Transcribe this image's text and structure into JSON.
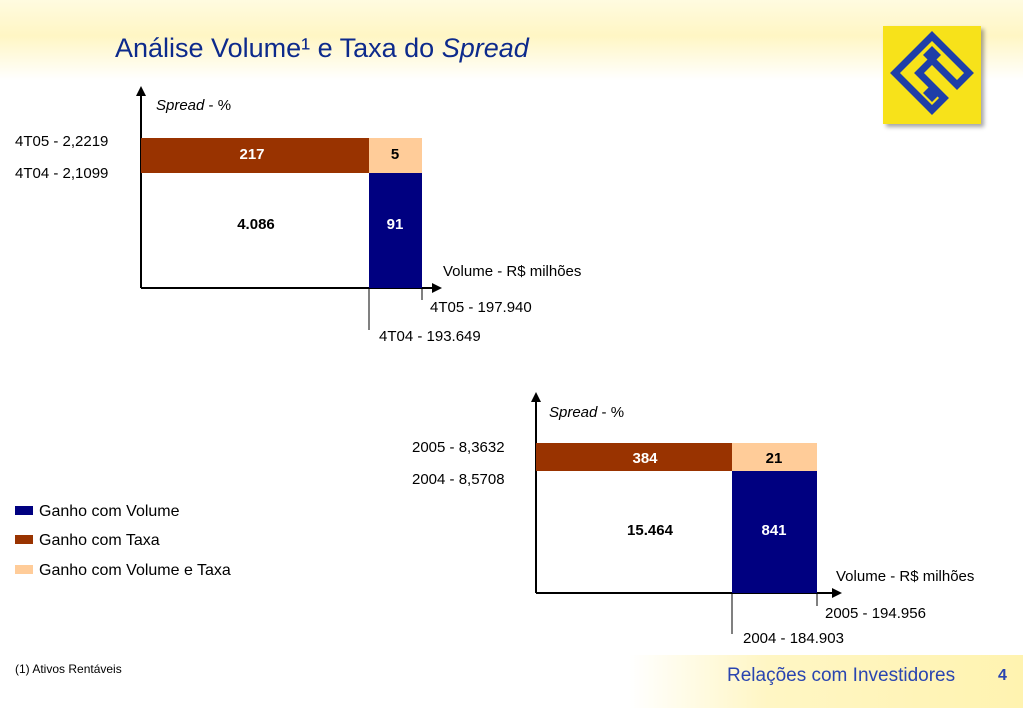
{
  "header": {
    "title_main": "Análise Volume¹ e Taxa do ",
    "title_italic": "Spread"
  },
  "colors": {
    "volume": "#000080",
    "taxa": "#993300",
    "volume_taxa": "#ffcc99",
    "title": "#0d2a8c",
    "logo_bg": "#f7e21a",
    "logo_mark": "#1e3ea8"
  },
  "legend": {
    "items": [
      {
        "label": "Ganho com Volume",
        "color": "#000080"
      },
      {
        "label": "Ganho com Taxa",
        "color": "#993300"
      },
      {
        "label": "Ganho com Volume e Taxa",
        "color": "#ffcc99"
      }
    ]
  },
  "chart_data": [
    {
      "type": "bar",
      "y_label_italic": "Spread",
      "y_label_rest": " - %",
      "x_label": "Volume - R$ milhões",
      "spread_labels": {
        "high": "4T05 - 2,2219",
        "low": "4T04 - 2,1099"
      },
      "volume_labels": {
        "high": "4T05 - 197.940",
        "low": "4T04 - 193.649"
      },
      "spread": {
        "prior": 2.1099,
        "current": 2.2219
      },
      "volume": {
        "prior": 193649,
        "current": 197940
      },
      "values": {
        "base": "4.086",
        "taxa": "217",
        "volume": "91",
        "volume_taxa": "5"
      }
    },
    {
      "type": "bar",
      "y_label_italic": "Spread",
      "y_label_rest": " - %",
      "x_label": "Volume - R$ milhões",
      "spread_labels": {
        "high": "2005 - 8,3632",
        "low": "2004 - 8,5708"
      },
      "volume_labels": {
        "high": "2005 - 194.956",
        "low": "2004 - 184.903"
      },
      "spread": {
        "prior": 8.5708,
        "current": 8.3632
      },
      "volume": {
        "prior": 184903,
        "current": 194956
      },
      "values": {
        "base": "15.464",
        "taxa": "384",
        "volume": "841",
        "volume_taxa": "21"
      }
    }
  ],
  "footnote": "(1) Ativos Rentáveis",
  "footer": {
    "label": "Relações com Investidores",
    "page": "4"
  }
}
